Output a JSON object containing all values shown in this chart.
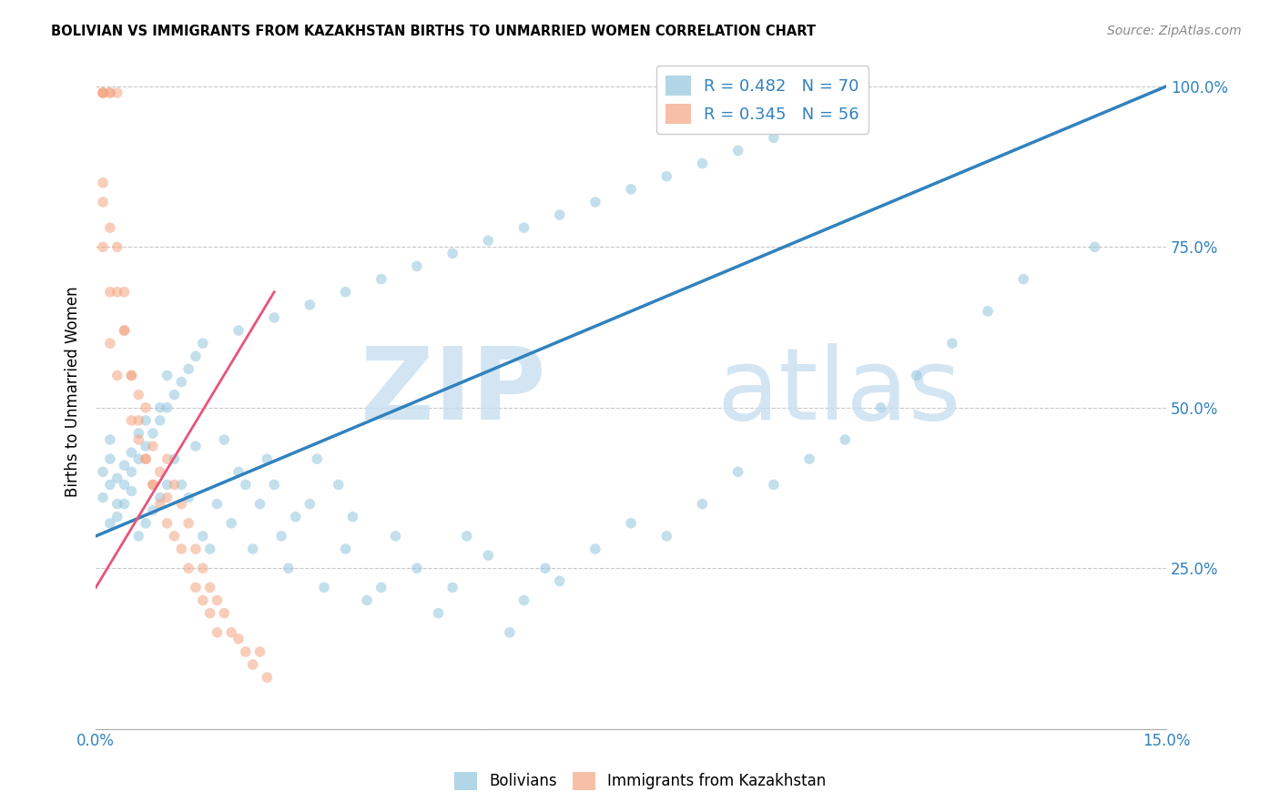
{
  "title": "BOLIVIAN VS IMMIGRANTS FROM KAZAKHSTAN BIRTHS TO UNMARRIED WOMEN CORRELATION CHART",
  "source": "Source: ZipAtlas.com",
  "ylabel": "Births to Unmarried Women",
  "xlabel_bolivians": "Bolivians",
  "xlabel_kazakhstan": "Immigrants from Kazakhstan",
  "watermark_zip": "ZIP",
  "watermark_atlas": "atlas",
  "xmin": 0.0,
  "xmax": 0.15,
  "ymin": 0.0,
  "ymax": 1.05,
  "yticks": [
    0.0,
    0.25,
    0.5,
    0.75,
    1.0
  ],
  "ytick_labels": [
    "",
    "25.0%",
    "50.0%",
    "75.0%",
    "100.0%"
  ],
  "xtick_labels": [
    "0.0%",
    "",
    "",
    "",
    "",
    "15.0%"
  ],
  "blue_color": "#92c5de",
  "pink_color": "#f4a582",
  "blue_line_color": "#3182bd",
  "pink_line_color": "#e8547a",
  "grid_color": "#c8c8c8",
  "background_color": "#ffffff",
  "blue_scatter_x": [
    0.001,
    0.001,
    0.002,
    0.002,
    0.002,
    0.003,
    0.003,
    0.004,
    0.004,
    0.005,
    0.005,
    0.006,
    0.006,
    0.007,
    0.007,
    0.008,
    0.009,
    0.009,
    0.01,
    0.01,
    0.011,
    0.012,
    0.013,
    0.014,
    0.015,
    0.016,
    0.017,
    0.018,
    0.019,
    0.02,
    0.021,
    0.022,
    0.023,
    0.024,
    0.025,
    0.026,
    0.027,
    0.028,
    0.03,
    0.031,
    0.032,
    0.034,
    0.035,
    0.036,
    0.038,
    0.04,
    0.042,
    0.045,
    0.048,
    0.05,
    0.052,
    0.055,
    0.058,
    0.06,
    0.063,
    0.065,
    0.07,
    0.075,
    0.08,
    0.085,
    0.09,
    0.095,
    0.1,
    0.105,
    0.11,
    0.115,
    0.12,
    0.125,
    0.13,
    0.14,
    0.002,
    0.003,
    0.004,
    0.005,
    0.006,
    0.007,
    0.008,
    0.009,
    0.01,
    0.011,
    0.012,
    0.013,
    0.014,
    0.015,
    0.02,
    0.025,
    0.03,
    0.035,
    0.04,
    0.045,
    0.05,
    0.055,
    0.06,
    0.065,
    0.07,
    0.075,
    0.08,
    0.085,
    0.09,
    0.095
  ],
  "blue_scatter_y": [
    0.36,
    0.4,
    0.38,
    0.42,
    0.45,
    0.33,
    0.39,
    0.41,
    0.35,
    0.37,
    0.43,
    0.3,
    0.46,
    0.32,
    0.48,
    0.34,
    0.36,
    0.5,
    0.38,
    0.55,
    0.42,
    0.38,
    0.36,
    0.44,
    0.3,
    0.28,
    0.35,
    0.45,
    0.32,
    0.4,
    0.38,
    0.28,
    0.35,
    0.42,
    0.38,
    0.3,
    0.25,
    0.33,
    0.35,
    0.42,
    0.22,
    0.38,
    0.28,
    0.33,
    0.2,
    0.22,
    0.3,
    0.25,
    0.18,
    0.22,
    0.3,
    0.27,
    0.15,
    0.2,
    0.25,
    0.23,
    0.28,
    0.32,
    0.3,
    0.35,
    0.4,
    0.38,
    0.42,
    0.45,
    0.5,
    0.55,
    0.6,
    0.65,
    0.7,
    0.75,
    0.32,
    0.35,
    0.38,
    0.4,
    0.42,
    0.44,
    0.46,
    0.48,
    0.5,
    0.52,
    0.54,
    0.56,
    0.58,
    0.6,
    0.62,
    0.64,
    0.66,
    0.68,
    0.7,
    0.72,
    0.74,
    0.76,
    0.78,
    0.8,
    0.82,
    0.84,
    0.86,
    0.88,
    0.9,
    0.92
  ],
  "pink_scatter_x": [
    0.001,
    0.001,
    0.001,
    0.001,
    0.001,
    0.002,
    0.002,
    0.002,
    0.002,
    0.003,
    0.003,
    0.003,
    0.004,
    0.004,
    0.005,
    0.005,
    0.006,
    0.006,
    0.007,
    0.007,
    0.008,
    0.008,
    0.009,
    0.01,
    0.01,
    0.011,
    0.012,
    0.013,
    0.014,
    0.015,
    0.016,
    0.017,
    0.018,
    0.019,
    0.02,
    0.021,
    0.022,
    0.023,
    0.024,
    0.001,
    0.002,
    0.003,
    0.004,
    0.005,
    0.006,
    0.007,
    0.008,
    0.009,
    0.01,
    0.011,
    0.012,
    0.013,
    0.014,
    0.015,
    0.016,
    0.017
  ],
  "pink_scatter_y": [
    0.99,
    0.99,
    0.99,
    0.82,
    0.75,
    0.99,
    0.99,
    0.68,
    0.6,
    0.99,
    0.75,
    0.55,
    0.68,
    0.62,
    0.55,
    0.48,
    0.52,
    0.45,
    0.42,
    0.5,
    0.38,
    0.44,
    0.4,
    0.36,
    0.42,
    0.38,
    0.35,
    0.32,
    0.28,
    0.25,
    0.22,
    0.2,
    0.18,
    0.15,
    0.14,
    0.12,
    0.1,
    0.12,
    0.08,
    0.85,
    0.78,
    0.68,
    0.62,
    0.55,
    0.48,
    0.42,
    0.38,
    0.35,
    0.32,
    0.3,
    0.28,
    0.25,
    0.22,
    0.2,
    0.18,
    0.15
  ],
  "blue_line_x0": 0.0,
  "blue_line_x1": 0.15,
  "blue_line_y0": 0.3,
  "blue_line_y1": 1.0,
  "pink_line_x0": 0.0,
  "pink_line_x1": 0.025,
  "pink_line_y0": 0.22,
  "pink_line_y1": 0.68
}
